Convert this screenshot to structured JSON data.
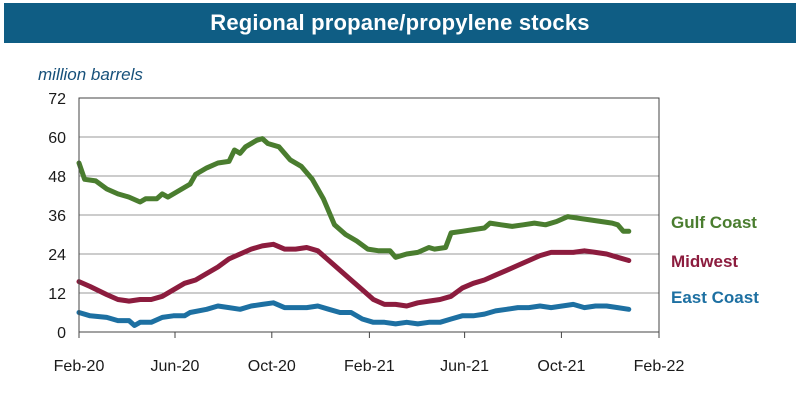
{
  "chart_data": {
    "type": "line",
    "title": "Regional propane/propylene stocks",
    "ylabel": "million barrels",
    "xlabel": "",
    "ylim": [
      0,
      72
    ],
    "yticks": [
      0,
      12,
      24,
      36,
      48,
      60,
      72
    ],
    "x_ticks": [
      "Feb-20",
      "Jun-20",
      "Oct-20",
      "Feb-21",
      "Jun-21",
      "Oct-21",
      "Feb-22"
    ],
    "x_start": "Feb-20",
    "x_end": "Feb-22",
    "grid": true,
    "legend": "right, labels next to series ends",
    "series": [
      {
        "name": "Gulf Coast",
        "color": "#4a7d2f",
        "points": [
          [
            "2020-02-01",
            52
          ],
          [
            "2020-02-08",
            47
          ],
          [
            "2020-02-22",
            46.5
          ],
          [
            "2020-03-07",
            44
          ],
          [
            "2020-03-21",
            42.5
          ],
          [
            "2020-04-04",
            41.5
          ],
          [
            "2020-04-18",
            40
          ],
          [
            "2020-04-25",
            41
          ],
          [
            "2020-05-09",
            41
          ],
          [
            "2020-05-16",
            42.5
          ],
          [
            "2020-05-23",
            41.5
          ],
          [
            "2020-06-06",
            43.5
          ],
          [
            "2020-06-20",
            45.5
          ],
          [
            "2020-06-27",
            48.5
          ],
          [
            "2020-07-11",
            50.5
          ],
          [
            "2020-07-25",
            52
          ],
          [
            "2020-08-08",
            52.5
          ],
          [
            "2020-08-15",
            56
          ],
          [
            "2020-08-22",
            55
          ],
          [
            "2020-08-29",
            57
          ],
          [
            "2020-09-12",
            59
          ],
          [
            "2020-09-19",
            59.5
          ],
          [
            "2020-09-26",
            58
          ],
          [
            "2020-10-10",
            57
          ],
          [
            "2020-10-24",
            53
          ],
          [
            "2020-11-07",
            51
          ],
          [
            "2020-11-21",
            47
          ],
          [
            "2020-12-05",
            41
          ],
          [
            "2020-12-19",
            33
          ],
          [
            "2021-01-02",
            30
          ],
          [
            "2021-01-16",
            28
          ],
          [
            "2021-01-30",
            25.5
          ],
          [
            "2021-02-13",
            25
          ],
          [
            "2021-02-27",
            25
          ],
          [
            "2021-03-06",
            23
          ],
          [
            "2021-03-20",
            24
          ],
          [
            "2021-04-03",
            24.5
          ],
          [
            "2021-04-17",
            26
          ],
          [
            "2021-04-24",
            25.5
          ],
          [
            "2021-05-08",
            26
          ],
          [
            "2021-05-15",
            30.5
          ],
          [
            "2021-05-29",
            31
          ],
          [
            "2021-06-12",
            31.5
          ],
          [
            "2021-06-26",
            32
          ],
          [
            "2021-07-03",
            33.5
          ],
          [
            "2021-07-17",
            33
          ],
          [
            "2021-07-31",
            32.5
          ],
          [
            "2021-08-14",
            33
          ],
          [
            "2021-08-28",
            33.5
          ],
          [
            "2021-09-11",
            33
          ],
          [
            "2021-09-25",
            34
          ],
          [
            "2021-10-09",
            35.5
          ],
          [
            "2021-10-23",
            35
          ],
          [
            "2021-11-06",
            34.5
          ],
          [
            "2021-11-20",
            34
          ],
          [
            "2021-12-04",
            33.5
          ],
          [
            "2021-12-11",
            33
          ],
          [
            "2021-12-18",
            31
          ],
          [
            "2021-12-25",
            31
          ]
        ]
      },
      {
        "name": "Midwest",
        "color": "#8c1c3e",
        "points": [
          [
            "2020-02-01",
            15.5
          ],
          [
            "2020-02-15",
            14
          ],
          [
            "2020-03-07",
            11.5
          ],
          [
            "2020-03-21",
            10
          ],
          [
            "2020-04-04",
            9.5
          ],
          [
            "2020-04-18",
            10
          ],
          [
            "2020-05-02",
            10
          ],
          [
            "2020-05-16",
            11
          ],
          [
            "2020-05-30",
            13
          ],
          [
            "2020-06-13",
            15
          ],
          [
            "2020-06-27",
            16
          ],
          [
            "2020-07-11",
            18
          ],
          [
            "2020-07-25",
            20
          ],
          [
            "2020-08-08",
            22.5
          ],
          [
            "2020-08-22",
            24
          ],
          [
            "2020-09-05",
            25.5
          ],
          [
            "2020-09-19",
            26.5
          ],
          [
            "2020-10-03",
            27
          ],
          [
            "2020-10-17",
            25.5
          ],
          [
            "2020-10-31",
            25.5
          ],
          [
            "2020-11-14",
            26
          ],
          [
            "2020-11-28",
            25
          ],
          [
            "2020-12-12",
            22
          ],
          [
            "2020-12-26",
            19
          ],
          [
            "2021-01-09",
            16
          ],
          [
            "2021-01-23",
            13
          ],
          [
            "2021-02-06",
            10
          ],
          [
            "2021-02-20",
            8.5
          ],
          [
            "2021-03-06",
            8.5
          ],
          [
            "2021-03-20",
            8
          ],
          [
            "2021-04-03",
            9
          ],
          [
            "2021-04-17",
            9.5
          ],
          [
            "2021-05-01",
            10
          ],
          [
            "2021-05-15",
            11
          ],
          [
            "2021-05-29",
            13.5
          ],
          [
            "2021-06-12",
            15
          ],
          [
            "2021-06-26",
            16
          ],
          [
            "2021-07-10",
            17.5
          ],
          [
            "2021-07-24",
            19
          ],
          [
            "2021-08-07",
            20.5
          ],
          [
            "2021-08-21",
            22
          ],
          [
            "2021-09-04",
            23.5
          ],
          [
            "2021-09-18",
            24.5
          ],
          [
            "2021-10-02",
            24.5
          ],
          [
            "2021-10-16",
            24.5
          ],
          [
            "2021-10-30",
            25
          ],
          [
            "2021-11-13",
            24.5
          ],
          [
            "2021-11-27",
            24
          ],
          [
            "2021-12-11",
            23
          ],
          [
            "2021-12-25",
            22
          ]
        ]
      },
      {
        "name": "East Coast",
        "color": "#1d70a2",
        "points": [
          [
            "2020-02-01",
            6
          ],
          [
            "2020-02-15",
            5
          ],
          [
            "2020-03-07",
            4.5
          ],
          [
            "2020-03-21",
            3.5
          ],
          [
            "2020-04-04",
            3.5
          ],
          [
            "2020-04-11",
            2
          ],
          [
            "2020-04-18",
            3
          ],
          [
            "2020-05-02",
            3
          ],
          [
            "2020-05-16",
            4.5
          ],
          [
            "2020-05-30",
            5
          ],
          [
            "2020-06-13",
            5
          ],
          [
            "2020-06-20",
            6
          ],
          [
            "2020-07-11",
            7
          ],
          [
            "2020-07-25",
            8
          ],
          [
            "2020-08-08",
            7.5
          ],
          [
            "2020-08-22",
            7
          ],
          [
            "2020-09-05",
            8
          ],
          [
            "2020-09-19",
            8.5
          ],
          [
            "2020-10-03",
            9
          ],
          [
            "2020-10-17",
            7.5
          ],
          [
            "2020-10-31",
            7.5
          ],
          [
            "2020-11-14",
            7.5
          ],
          [
            "2020-11-28",
            8
          ],
          [
            "2020-12-12",
            7
          ],
          [
            "2020-12-26",
            6
          ],
          [
            "2021-01-09",
            6
          ],
          [
            "2021-01-23",
            4
          ],
          [
            "2021-02-06",
            3
          ],
          [
            "2021-02-20",
            3
          ],
          [
            "2021-03-06",
            2.5
          ],
          [
            "2021-03-20",
            3
          ],
          [
            "2021-04-03",
            2.5
          ],
          [
            "2021-04-17",
            3
          ],
          [
            "2021-05-01",
            3
          ],
          [
            "2021-05-15",
            4
          ],
          [
            "2021-05-29",
            5
          ],
          [
            "2021-06-12",
            5
          ],
          [
            "2021-06-26",
            5.5
          ],
          [
            "2021-07-10",
            6.5
          ],
          [
            "2021-07-24",
            7
          ],
          [
            "2021-08-07",
            7.5
          ],
          [
            "2021-08-21",
            7.5
          ],
          [
            "2021-09-04",
            8
          ],
          [
            "2021-09-18",
            7.5
          ],
          [
            "2021-10-02",
            8
          ],
          [
            "2021-10-16",
            8.5
          ],
          [
            "2021-10-30",
            7.5
          ],
          [
            "2021-11-13",
            8
          ],
          [
            "2021-11-27",
            8
          ],
          [
            "2021-12-11",
            7.5
          ],
          [
            "2021-12-25",
            7
          ]
        ]
      }
    ]
  }
}
